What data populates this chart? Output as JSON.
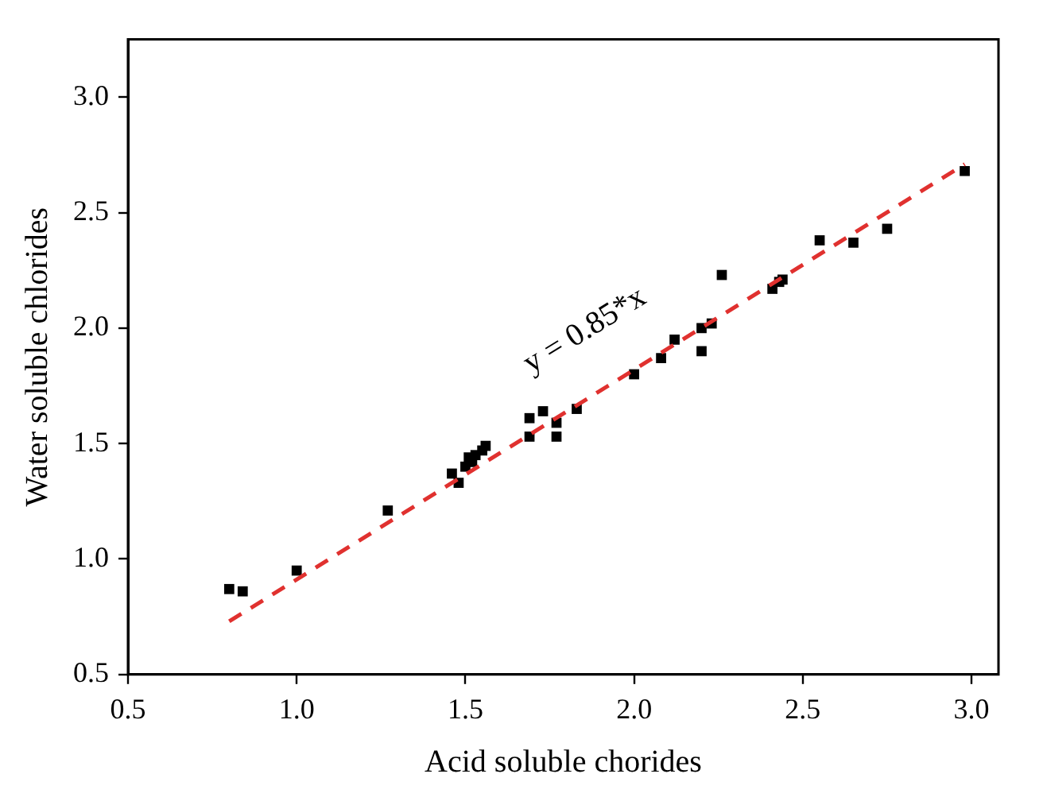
{
  "chart_data": {
    "type": "scatter",
    "xlabel": "Acid soluble chorides",
    "ylabel": "Water soluble chlorides",
    "xlim": [
      0.5,
      3.08
    ],
    "ylim": [
      0.5,
      3.25
    ],
    "xticks": [
      0.5,
      {
        "value": 1,
        "label": "1.0"
      },
      1.5,
      {
        "value": 2,
        "label": "2.0"
      },
      2.5,
      {
        "value": 3,
        "label": "3.0"
      }
    ],
    "yticks": [
      0.5,
      {
        "value": 1,
        "label": "1.0"
      },
      1.5,
      {
        "value": 2,
        "label": "2.0"
      },
      2.5,
      {
        "value": 3,
        "label": "3.0"
      }
    ],
    "grid": false,
    "legend": false,
    "marker": "square",
    "annotations": [
      "y = 0.85*x"
    ],
    "series": [
      {
        "color": "#000000",
        "x": [
          0.8,
          0.84,
          1.0,
          1.27,
          1.46,
          1.48,
          1.5,
          1.51,
          1.52,
          1.53,
          1.55,
          1.56,
          1.69,
          1.69,
          1.73,
          1.77,
          1.77,
          1.83,
          2.0,
          2.08,
          2.12,
          2.2,
          2.2,
          2.23,
          2.26,
          2.41,
          2.43,
          2.44,
          2.55,
          2.65,
          2.75,
          2.98
        ],
        "values": [
          0.87,
          0.86,
          0.95,
          1.21,
          1.37,
          1.33,
          1.4,
          1.44,
          1.42,
          1.45,
          1.47,
          1.49,
          1.53,
          1.61,
          1.64,
          1.53,
          1.59,
          1.65,
          1.8,
          1.87,
          1.95,
          1.9,
          2.0,
          2.02,
          2.23,
          2.17,
          2.2,
          2.21,
          2.38,
          2.37,
          2.43,
          2.68
        ]
      },
      {
        "type": "line",
        "color": "#e0312f",
        "line_style": "dashed",
        "marker": "none",
        "x": [
          0.8,
          2.98
        ],
        "values": [
          0.73,
          2.71
        ]
      }
    ]
  }
}
